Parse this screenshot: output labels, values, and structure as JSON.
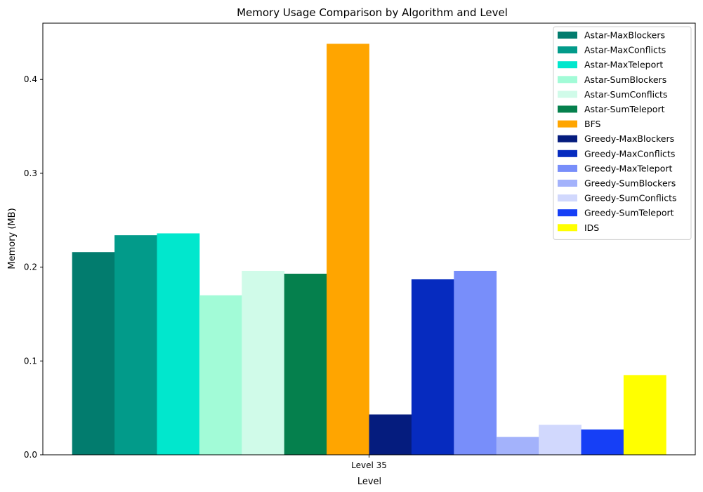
{
  "chart_data": {
    "type": "bar",
    "title": "Memory Usage Comparison by Algorithm and Level",
    "xlabel": "Level",
    "ylabel": "Memory (MB)",
    "categories": [
      "Level 35"
    ],
    "ylim": [
      0,
      0.46
    ],
    "yticks": [
      0.0,
      0.1,
      0.2,
      0.3,
      0.4
    ],
    "ytick_labels": [
      "0.0",
      "0.1",
      "0.2",
      "0.3",
      "0.4"
    ],
    "legend_position": "top-right",
    "grid": false,
    "series": [
      {
        "name": "Astar-MaxBlockers",
        "values": [
          0.216
        ],
        "color": "#027c6e"
      },
      {
        "name": "Astar-MaxConflicts",
        "values": [
          0.234
        ],
        "color": "#029b8a"
      },
      {
        "name": "Astar-MaxTeleport",
        "values": [
          0.236
        ],
        "color": "#01e7cd"
      },
      {
        "name": "Astar-SumBlockers",
        "values": [
          0.17
        ],
        "color": "#a2fbd7"
      },
      {
        "name": "Astar-SumConflicts",
        "values": [
          0.196
        ],
        "color": "#d0fbe9"
      },
      {
        "name": "Astar-SumTeleport",
        "values": [
          0.193
        ],
        "color": "#05804d"
      },
      {
        "name": "BFS",
        "values": [
          0.438
        ],
        "color": "#ffa500"
      },
      {
        "name": "Greedy-MaxBlockers",
        "values": [
          0.043
        ],
        "color": "#051c7e"
      },
      {
        "name": "Greedy-MaxConflicts",
        "values": [
          0.187
        ],
        "color": "#062bbf"
      },
      {
        "name": "Greedy-MaxTeleport",
        "values": [
          0.196
        ],
        "color": "#788efa"
      },
      {
        "name": "Greedy-SumBlockers",
        "values": [
          0.019
        ],
        "color": "#a3b2fb"
      },
      {
        "name": "Greedy-SumConflicts",
        "values": [
          0.032
        ],
        "color": "#d1d8fd"
      },
      {
        "name": "Greedy-SumTeleport",
        "values": [
          0.027
        ],
        "color": "#163ff6"
      },
      {
        "name": "IDS",
        "values": [
          0.085
        ],
        "color": "#ffff00"
      }
    ]
  }
}
